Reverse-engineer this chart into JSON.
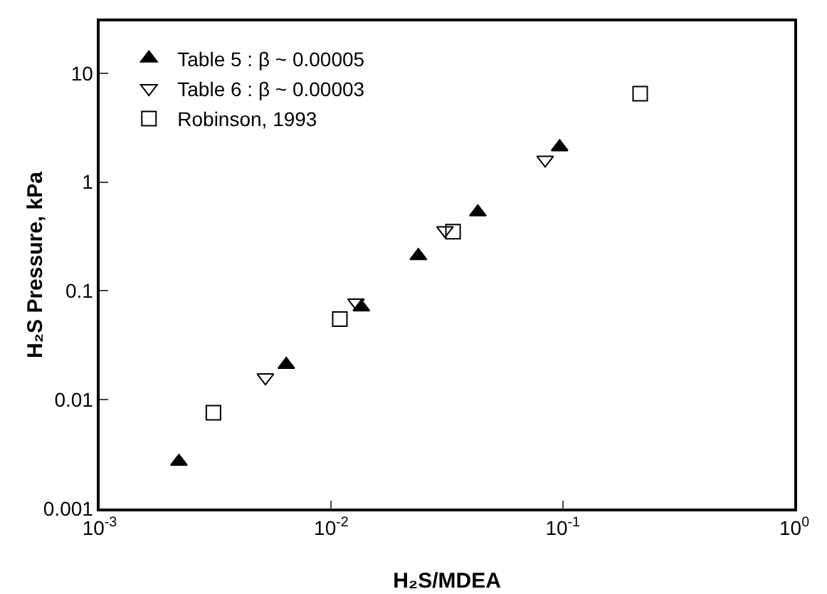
{
  "chart_data": {
    "type": "scatter",
    "xlabel": "H₂S/MDEA",
    "ylabel": "H₂S Pressure, kPa",
    "log": "xy",
    "grid": false,
    "legend": "top left",
    "xlim": [
      0.001,
      1
    ],
    "ylim": [
      0.001,
      30
    ],
    "xticks": [
      {
        "value": 0.001,
        "label": "10$^{-3}$"
      },
      {
        "value": 0.01,
        "label": "10$^{-2}$"
      },
      {
        "value": 0.1,
        "label": "10$^{-1}$"
      },
      {
        "value": 1,
        "label": "10$^{0}$"
      }
    ],
    "yticks": [
      0.001,
      0.01,
      0.1,
      1,
      10
    ],
    "series": [
      {
        "name": "Table 5 : β ~ 0.00005",
        "color": "#000000",
        "marker": "triangle",
        "x": [
          0.0022,
          0.0064,
          0.0135,
          0.0238,
          0.043,
          0.097
        ],
        "values": [
          0.0027,
          0.021,
          0.071,
          0.21,
          0.53,
          2.1
        ]
      },
      {
        "name": "Table 6 : β ~ 0.00003",
        "color": "#000000",
        "marker": "triangle-down",
        "x": [
          0.0052,
          0.0128,
          0.031,
          0.084
        ],
        "values": [
          0.016,
          0.078,
          0.36,
          1.6
        ]
      },
      {
        "name": "Robinson, 1993",
        "color": "#000000",
        "marker": "square",
        "x": [
          0.0031,
          0.0109,
          0.0336,
          0.216
        ],
        "values": [
          0.0076,
          0.055,
          0.35,
          6.5
        ]
      }
    ]
  }
}
